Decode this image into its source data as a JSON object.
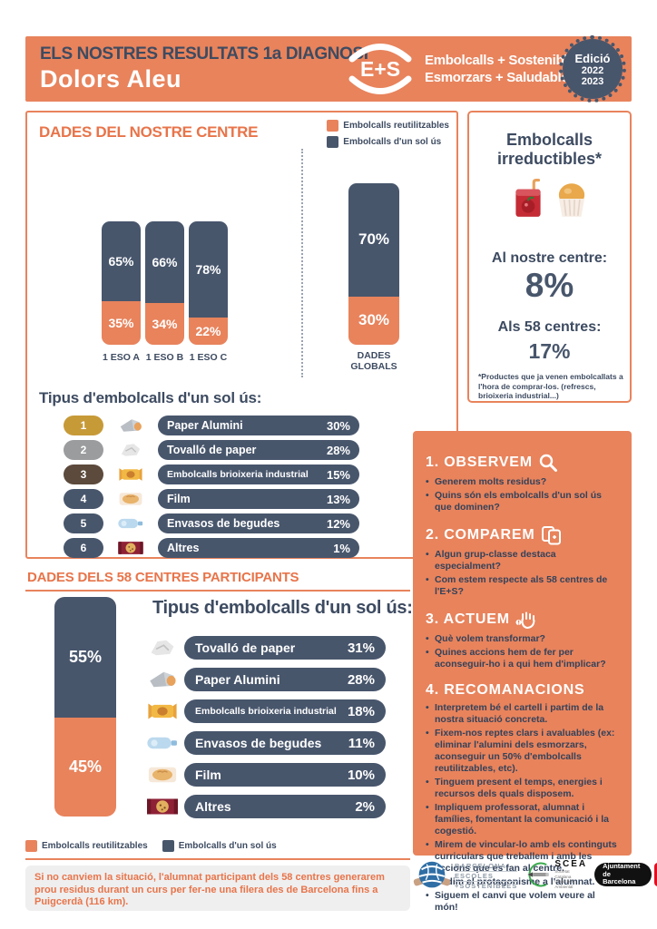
{
  "header": {
    "title_line1": "ELS NOSTRES RESULTATS 1a DIAGNOSI",
    "title_line2": "Dolors Aleu",
    "logo_text": "E+S",
    "program_line1": "Embolcalls + Sostenibles",
    "program_line2": "Esmorzars + Saludables",
    "badge": {
      "word": "Edició",
      "year1": "2022",
      "year2": "2023"
    }
  },
  "legend": {
    "reusable": "Embolcalls reutilitzables",
    "single_use": "Embolcalls d'un sol ús"
  },
  "centre": {
    "title": "DADES DEL NOSTRE CENTRE",
    "bars": [
      {
        "label": "1 ESO A",
        "single_use": "65%",
        "reusable": "35%"
      },
      {
        "label": "1 ESO B",
        "single_use": "66%",
        "reusable": "34%"
      },
      {
        "label": "1 ESO C",
        "single_use": "78%",
        "reusable": "22%"
      }
    ],
    "global_bar": {
      "label_line1": "DADES",
      "label_line2": "GLOBALS",
      "single_use": "70%",
      "reusable": "30%"
    },
    "table_title": "Tipus d'embolcalls d'un sol ús:",
    "rows": [
      {
        "rank": "1",
        "icon": "foil-icon",
        "label": "Paper Alumini",
        "pct": "30%"
      },
      {
        "rank": "2",
        "icon": "napkin-icon",
        "label": "Tovalló de paper",
        "pct": "28%"
      },
      {
        "rank": "3",
        "icon": "candy-wrapper-icon",
        "label": "Embolcalls brioixeria industrial",
        "pct": "15%"
      },
      {
        "rank": "4",
        "icon": "bread-film-icon",
        "label": "Film",
        "pct": "13%"
      },
      {
        "rank": "5",
        "icon": "bottle-icon",
        "label": "Envasos de begudes",
        "pct": "12%"
      },
      {
        "rank": "6",
        "icon": "cookie-pack-icon",
        "label": "Altres",
        "pct": "1%"
      }
    ]
  },
  "irreductibles": {
    "title_line1": "Embolcalls",
    "title_line2": "irreductibles*",
    "icons": [
      "juice-box-icon",
      "muffin-icon"
    ],
    "centre_label": "Al nostre centre:",
    "centre_value": "8%",
    "network_label": "Als 58 centres:",
    "network_value": "17%",
    "footnote": "*Productes que ja venen embolcallats a l'hora de comprar-los. (refrescs, brioixeria industrial...)"
  },
  "steps": [
    {
      "title": "1. OBSERVEM",
      "icon": "magnifier-icon",
      "bullets": [
        "Generem molts residus?",
        "Quins són els embolcalls d'un sol ús que dominen?"
      ]
    },
    {
      "title": "2. COMPAREM",
      "icon": "pages-icon",
      "bullets": [
        "Algun grup-classe destaca especialment?",
        "Com estem respecte als 58 centres de l'E+S?"
      ]
    },
    {
      "title": "3. ACTUEM",
      "icon": "hand-icon",
      "bullets": [
        "Què volem transformar?",
        "Quines accions hem de fer per aconseguir-ho i a qui hem d'implicar?"
      ]
    },
    {
      "title": "4. RECOMANACIONS",
      "icon": "",
      "bullets": [
        "Interpretem bé el cartell i partim de la nostra situació concreta.",
        "Fixem-nos reptes clars i avaluables (ex: eliminar l'alumini dels esmorzars, aconseguir un 50% d'embolcalls reutilitzables, etc).",
        "Tinguem present el temps, energies i recursos dels quals disposem.",
        "Impliquem professorat, alumnat i famílies, fomentant la comunicació i la cogestió.",
        "Mirem de vincular-lo amb els continguts curriculars que treballem i amb les accions que es fan al centre.",
        "Cedim el protagonisme a l'alumnat.",
        "Siguem el canvi que volem veure al món!"
      ]
    }
  ],
  "participants": {
    "title": "DADES DELS 58 CENTRES PARTICIPANTS",
    "bar": {
      "single_use": "55%",
      "reusable": "45%"
    },
    "table_title": "Tipus d'embolcalls d'un sol ús:",
    "rows": [
      {
        "icon": "napkin-icon",
        "label": "Tovalló de paper",
        "pct": "31%"
      },
      {
        "icon": "foil-icon",
        "label": "Paper Alumini",
        "pct": "28%"
      },
      {
        "icon": "candy-wrapper-icon",
        "label": "Embolcalls brioixeria industrial",
        "pct": "18%"
      },
      {
        "icon": "bottle-icon",
        "label": "Envasos de begudes",
        "pct": "11%"
      },
      {
        "icon": "bread-film-icon",
        "label": "Film",
        "pct": "10%"
      },
      {
        "icon": "cookie-pack-icon",
        "label": "Altres",
        "pct": "2%"
      }
    ]
  },
  "footer": {
    "note": "Si no canviem la situació, l'alumnat participant dels 58 centres generarem prou residus durant un curs per fer-ne una filera des de Barcelona fins a Puigcerdà (116 km).",
    "logos": {
      "bes": {
        "line1": "BARCELONA",
        "line2": "ESCOLES",
        "line3": "+SOSTENIBLES"
      },
      "scea": {
        "name": "SCEA",
        "sub1": "Societat",
        "sub2": "Catalana",
        "sub3": "d'Educació",
        "sub4": "Ambiental"
      },
      "ajuntament": {
        "line1": "Ajuntament de",
        "line2": "Barcelona"
      }
    }
  },
  "colors": {
    "orange": "#E8835C",
    "slate": "#48566C",
    "gold": "#C79A38",
    "silver": "#9A9C9E",
    "bronze": "#5C4A3C"
  },
  "chart_data": [
    {
      "type": "bar",
      "subtype": "stacked-percent",
      "title": "DADES DEL NOSTRE CENTRE",
      "categories": [
        "1 ESO A",
        "1 ESO B",
        "1 ESO C",
        "DADES GLOBALS"
      ],
      "series": [
        {
          "name": "Embolcalls d'un sol ús",
          "color": "#48566C",
          "values": [
            65,
            66,
            78,
            70
          ]
        },
        {
          "name": "Embolcalls reutilitzables",
          "color": "#E8835C",
          "values": [
            35,
            34,
            22,
            30
          ]
        }
      ],
      "unit": "%",
      "ylim": [
        0,
        100
      ],
      "legend_position": "top-right"
    },
    {
      "type": "table",
      "title": "Tipus d'embolcalls d'un sol ús (nostre centre)",
      "categories": [
        "Paper Alumini",
        "Tovalló de paper",
        "Embolcalls brioixeria industrial",
        "Film",
        "Envasos de begudes",
        "Altres"
      ],
      "values": [
        30,
        28,
        15,
        13,
        12,
        1
      ],
      "unit": "%"
    },
    {
      "type": "bar",
      "subtype": "stacked-percent",
      "title": "DADES DELS 58 CENTRES PARTICIPANTS",
      "categories": [
        "58 centres"
      ],
      "series": [
        {
          "name": "Embolcalls d'un sol ús",
          "color": "#48566C",
          "values": [
            55
          ]
        },
        {
          "name": "Embolcalls reutilitzables",
          "color": "#E8835C",
          "values": [
            45
          ]
        }
      ],
      "unit": "%",
      "ylim": [
        0,
        100
      ]
    },
    {
      "type": "table",
      "title": "Tipus d'embolcalls d'un sol ús (58 centres)",
      "categories": [
        "Tovalló de paper",
        "Paper Alumini",
        "Embolcalls brioixeria industrial",
        "Envasos de begudes",
        "Film",
        "Altres"
      ],
      "values": [
        31,
        28,
        18,
        11,
        10,
        2
      ],
      "unit": "%"
    },
    {
      "type": "bar",
      "title": "Embolcalls irreductibles",
      "categories": [
        "Al nostre centre",
        "Als 58 centres"
      ],
      "values": [
        8,
        17
      ],
      "unit": "%"
    }
  ]
}
